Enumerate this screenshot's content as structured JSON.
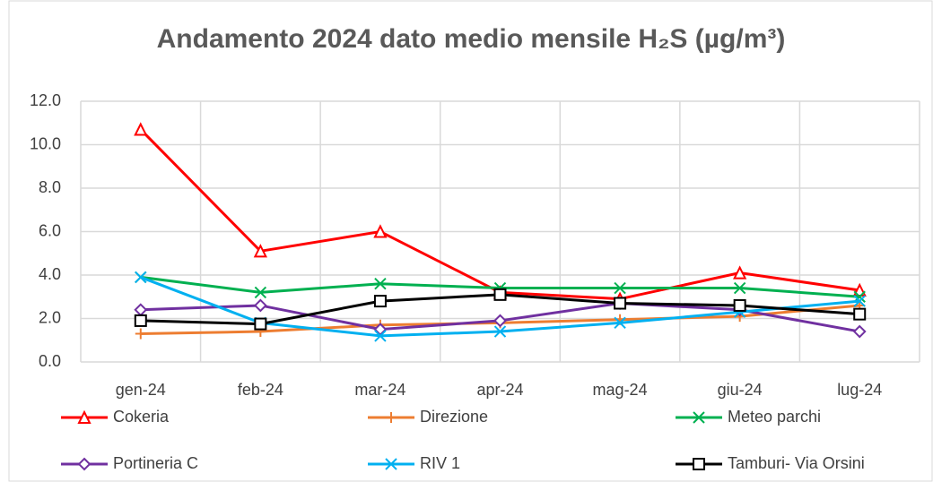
{
  "chart_data": {
    "type": "line",
    "title": "Andamento 2024 dato medio mensile H₂S (µg/m³)",
    "categories": [
      "gen-24",
      "feb-24",
      "mar-24",
      "apr-24",
      "mag-24",
      "giu-24",
      "lug-24"
    ],
    "series": [
      {
        "name": "Cokeria",
        "color": "#ff0000",
        "marker": "triangle",
        "values": [
          10.7,
          5.1,
          6.0,
          3.2,
          2.9,
          4.1,
          3.3
        ]
      },
      {
        "name": "Direzione",
        "color": "#ed7d31",
        "marker": "plus",
        "values": [
          1.3,
          1.4,
          1.7,
          1.8,
          1.95,
          2.1,
          2.6
        ]
      },
      {
        "name": "Meteo parchi",
        "color": "#00b050",
        "marker": "x",
        "values": [
          3.9,
          3.2,
          3.6,
          3.4,
          3.4,
          3.4,
          3.0
        ]
      },
      {
        "name": "Portineria C",
        "color": "#7030a0",
        "marker": "diamond",
        "values": [
          2.4,
          2.6,
          1.5,
          1.9,
          2.7,
          2.4,
          1.4
        ]
      },
      {
        "name": "RIV 1",
        "color": "#00b0f0",
        "marker": "x",
        "values": [
          3.9,
          1.8,
          1.2,
          1.4,
          1.8,
          2.3,
          2.8
        ]
      },
      {
        "name": "Tamburi- Via Orsini",
        "color": "#000000",
        "marker": "square",
        "values": [
          1.9,
          1.75,
          2.8,
          3.1,
          2.7,
          2.6,
          2.2
        ]
      }
    ],
    "ylim": [
      0,
      12
    ],
    "yticks": [
      {
        "value": 0,
        "label": "0.0"
      },
      {
        "value": 2,
        "label": "2.0"
      },
      {
        "value": 4,
        "label": "4.0"
      },
      {
        "value": 6,
        "label": "6.0"
      },
      {
        "value": 8,
        "label": "8.0"
      },
      {
        "value": 10,
        "label": "10.0"
      },
      {
        "value": 12,
        "label": "12.0"
      }
    ],
    "grid": true,
    "legend": "bottom"
  }
}
